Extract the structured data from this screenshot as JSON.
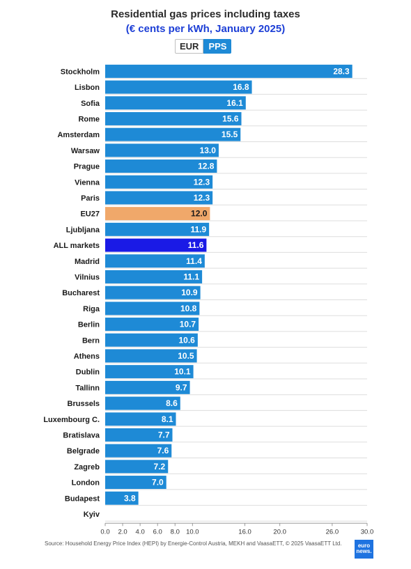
{
  "header": {
    "title": "Residential gas prices including taxes",
    "subtitle": "(€ cents per kWh, January 2025)",
    "toggle_eur": "EUR",
    "toggle_pps": "PPS"
  },
  "footer": {
    "source": "Source: Household Energy Price Index (HEPI) by Energie-Control Austria, MEKH and VaasaETT, © 2025 VaasaETT Ltd.",
    "logo_text": "euro news."
  },
  "colors": {
    "bar": "#1e8ad6",
    "eu27": "#f0a86a",
    "all_markets": "#1a1ae6",
    "grid": "#dddddd",
    "toggle_active": "#1e8ad6",
    "subtitle": "#1d3fd6"
  },
  "chart_data": {
    "type": "bar",
    "orientation": "horizontal",
    "title": "Residential gas prices including taxes",
    "subtitle": "(€ cents per kWh, January 2025)",
    "categories": [
      "Stockholm",
      "Lisbon",
      "Sofia",
      "Rome",
      "Amsterdam",
      "Warsaw",
      "Prague",
      "Vienna",
      "Paris",
      "EU27",
      "Ljubljana",
      "ALL markets",
      "Madrid",
      "Vilnius",
      "Bucharest",
      "Riga",
      "Berlin",
      "Bern",
      "Athens",
      "Dublin",
      "Tallinn",
      "Brussels",
      "Luxembourg C.",
      "Bratislava",
      "Belgrade",
      "Zagreb",
      "London",
      "Budapest",
      "Kyiv"
    ],
    "values": [
      28.3,
      16.8,
      16.1,
      15.6,
      15.5,
      13.0,
      12.8,
      12.3,
      12.3,
      12.0,
      11.9,
      11.6,
      11.4,
      11.1,
      10.9,
      10.8,
      10.7,
      10.6,
      10.5,
      10.1,
      9.7,
      8.6,
      8.1,
      7.7,
      7.6,
      7.2,
      7.0,
      3.8,
      null
    ],
    "value_labels": [
      "28.3",
      "16.8",
      "16.1",
      "15.6",
      "15.5",
      "13.0",
      "12.8",
      "12.3",
      "12.3",
      "12.0",
      "11.9",
      "11.6",
      "11.4",
      "11.1",
      "10.9",
      "10.8",
      "10.7",
      "10.6",
      "10.5",
      "10.1",
      "9.7",
      "8.6",
      "8.1",
      "7.7",
      "7.6",
      "7.2",
      "7.0",
      "3.8",
      ""
    ],
    "highlight": {
      "EU27": "#f0a86a",
      "ALL markets": "#1a1ae6"
    },
    "xticks": [
      0,
      2,
      4,
      6,
      8,
      10,
      16,
      20,
      26,
      30
    ],
    "xtick_labels": [
      "0.0",
      "2.0",
      "4.0",
      "6.0",
      "8.0",
      "10.0",
      "16.0",
      "20.0",
      "26.0",
      "30.0"
    ],
    "xlim": [
      0,
      30
    ],
    "xlabel": "",
    "ylabel": "",
    "grid": true,
    "legend": "none"
  }
}
